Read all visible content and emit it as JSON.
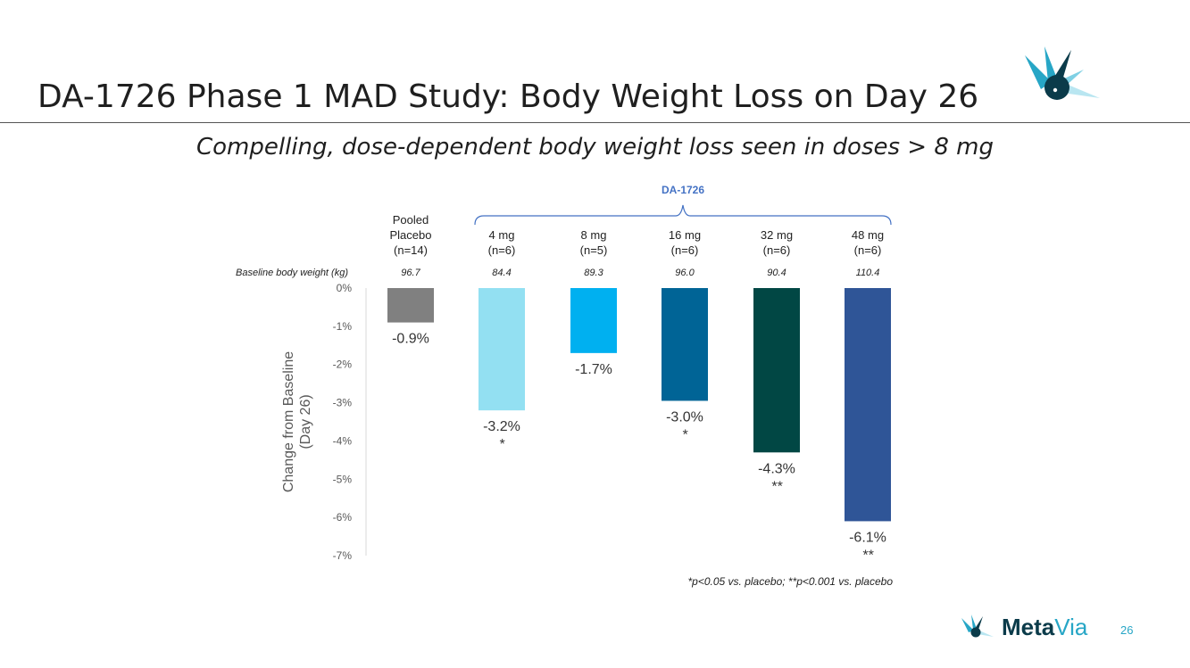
{
  "slide": {
    "title": "DA-1726 Phase 1 MAD Study: Body Weight Loss on Day 26",
    "subtitle": "Compelling, dose-dependent body weight loss seen in doses > 8 mg",
    "brand_meta": "Meta",
    "brand_via": "Via",
    "page_number": "26",
    "footnote": "*p<0.05 vs. placebo; **p<0.001 vs. placebo"
  },
  "colors": {
    "brace": "#4472c4",
    "brace_label": "#4472c4",
    "logo_dark": "#0b3b4a",
    "logo_light": "#27a6c6"
  },
  "chart_data": {
    "type": "bar",
    "group_label": "DA-1726",
    "baseline_row_label": "Baseline body weight (kg)",
    "ylabel_line1": "Change from Baseline",
    "ylabel_line2": "(Day 26)",
    "ylim": [
      -7,
      0
    ],
    "yticks": [
      0,
      -1,
      -2,
      -3,
      -4,
      -5,
      -6,
      -7
    ],
    "ytick_labels": [
      "0%",
      "-1%",
      "-2%",
      "-3%",
      "-4%",
      "-5%",
      "-6%",
      "-7%"
    ],
    "categories": [
      {
        "lines": [
          "Pooled",
          "Placebo",
          "(n=14)"
        ],
        "baseline": "96.7",
        "value": -0.9,
        "label": "-0.9%",
        "sig": "",
        "color": "#808080",
        "in_group": false
      },
      {
        "lines": [
          "4 mg",
          "(n=6)"
        ],
        "baseline": "84.4",
        "value": -3.2,
        "label": "-3.2%",
        "sig": "*",
        "color": "#93e0f2",
        "in_group": true
      },
      {
        "lines": [
          "8 mg",
          "(n=5)"
        ],
        "baseline": "89.3",
        "value": -1.7,
        "label": "-1.7%",
        "sig": "",
        "color": "#00b0f0",
        "in_group": true
      },
      {
        "lines": [
          "16 mg",
          "(n=6)"
        ],
        "baseline": "96.0",
        "value": -2.95,
        "label": "-3.0%",
        "sig": "*",
        "color": "#006496",
        "in_group": true
      },
      {
        "lines": [
          "32 mg",
          "(n=6)"
        ],
        "baseline": "90.4",
        "value": -4.3,
        "label": "-4.3%",
        "sig": "**",
        "color": "#014744",
        "in_group": true
      },
      {
        "lines": [
          "48 mg",
          "(n=6)"
        ],
        "baseline": "110.4",
        "value": -6.1,
        "label": "-6.1%",
        "sig": "**",
        "color": "#2f5597",
        "in_group": true
      }
    ]
  }
}
